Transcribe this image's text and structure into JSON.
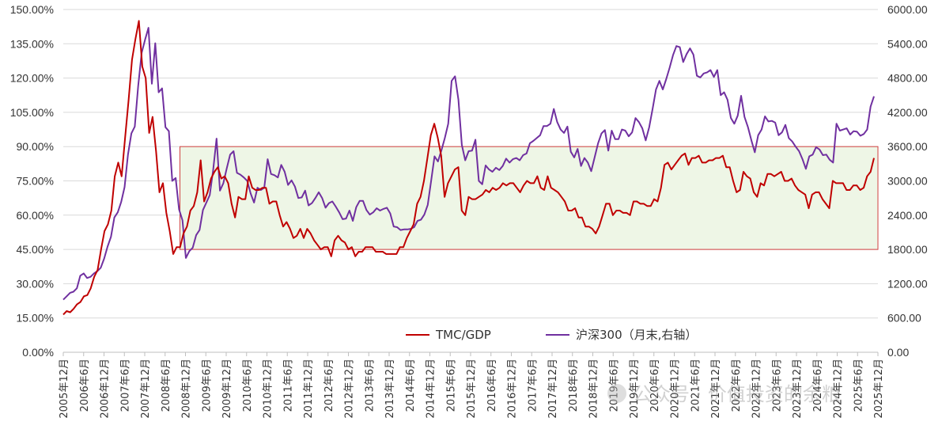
{
  "chart_data": {
    "type": "line",
    "title": "",
    "x_labels": [
      "2005年12月",
      "2006年6月",
      "2006年12月",
      "2007年6月",
      "2007年12月",
      "2008年6月",
      "2008年12月",
      "2009年6月",
      "2009年12月",
      "2010年6月",
      "2010年12月",
      "2011年6月",
      "2011年12月",
      "2012年6月",
      "2012年12月",
      "2013年6月",
      "2013年12月",
      "2014年6月",
      "2014年12月",
      "2015年6月",
      "2015年12月",
      "2016年6月",
      "2016年12月",
      "2017年6月",
      "2017年12月",
      "2018年6月",
      "2018年12月",
      "2019年6月",
      "2019年12月",
      "2020年6月",
      "2020年12月",
      "2021年6月",
      "2021年12月",
      "2022年6月",
      "2022年12月",
      "2023年6月",
      "2023年12月",
      "2024年6月",
      "2024年12月",
      "2025年6月",
      "2025年12月"
    ],
    "left_axis": {
      "min": 0,
      "max": 150,
      "ticks": [
        "0.00%",
        "15.00%",
        "30.00%",
        "45.00%",
        "60.00%",
        "75.00%",
        "90.00%",
        "105.00%",
        "120.00%",
        "135.00%",
        "150.00%"
      ]
    },
    "right_axis": {
      "min": 0,
      "max": 6000,
      "ticks": [
        "0.00",
        "600.00",
        "1200.00",
        "1800.00",
        "2400.00",
        "3000.00",
        "3600.00",
        "4200.00",
        "4800.00",
        "5400.00",
        "6000.00"
      ]
    },
    "series": [
      {
        "name": "TMC/GDP",
        "axis": "left",
        "color": "#c00000",
        "values": [
          16.5,
          18,
          17.5,
          19,
          21,
          22,
          24.5,
          25,
          28,
          33,
          36,
          45,
          53,
          56,
          62,
          77,
          83,
          77,
          94,
          110,
          128,
          137,
          145,
          125,
          120,
          96,
          103,
          88,
          70,
          74,
          61,
          53,
          43,
          46,
          46,
          52,
          55,
          62,
          64,
          70,
          84,
          66,
          70,
          76,
          79,
          81,
          76,
          77,
          74,
          65,
          59,
          68,
          67,
          67,
          77,
          72,
          71,
          71,
          72,
          72,
          65,
          66,
          66,
          60,
          55,
          57,
          54,
          50,
          51,
          54,
          50,
          54,
          52,
          49,
          47,
          45,
          46,
          46,
          42,
          49,
          51,
          49,
          48,
          45,
          46,
          42,
          44,
          44,
          46,
          46,
          46,
          44,
          44,
          44,
          43,
          43,
          43,
          43,
          46,
          46,
          50,
          53,
          56,
          65,
          68,
          75,
          85,
          95,
          100,
          94,
          86,
          68,
          74,
          77,
          80,
          81,
          62,
          60,
          68,
          67,
          67,
          68,
          69,
          71,
          70,
          72,
          71,
          72,
          74,
          73,
          74,
          74,
          72,
          70,
          73,
          75,
          74,
          74,
          77,
          72,
          71,
          77,
          72,
          71,
          70,
          68,
          66,
          62,
          62,
          63,
          59,
          59,
          55,
          55,
          54,
          52,
          55,
          60,
          65,
          65,
          60,
          62,
          62,
          61,
          61,
          60,
          66,
          66,
          65,
          65,
          64,
          64,
          67,
          66,
          72,
          82,
          83,
          80,
          82,
          84,
          86,
          87,
          82,
          85,
          85,
          86,
          83,
          83,
          84,
          84,
          85,
          85,
          86,
          81,
          81,
          75,
          70,
          71,
          79,
          77,
          76,
          70,
          68,
          74,
          73,
          78,
          78,
          77,
          78,
          79,
          75,
          75,
          76,
          73,
          71,
          70,
          69,
          63,
          69,
          70,
          70,
          67,
          65,
          63,
          75,
          74,
          74,
          74,
          71,
          71,
          73,
          73,
          71,
          72,
          77,
          79,
          85
        ]
      },
      {
        "name": "沪深300（月末,右轴）",
        "axis": "right",
        "color": "#7030a0",
        "values": [
          920,
          980,
          1040,
          1060,
          1120,
          1340,
          1380,
          1300,
          1320,
          1380,
          1420,
          1480,
          1640,
          1850,
          2020,
          2360,
          2450,
          2630,
          2890,
          3460,
          3830,
          3950,
          4660,
          5240,
          5470,
          5680,
          4700,
          5410,
          4550,
          4620,
          3940,
          3870,
          3000,
          3050,
          2500,
          2310,
          1650,
          1770,
          1830,
          2050,
          2140,
          2490,
          2620,
          2750,
          3190,
          3740,
          2830,
          2960,
          3220,
          3460,
          3520,
          3140,
          3110,
          3060,
          3000,
          2780,
          2620,
          2880,
          2840,
          2880,
          3380,
          3120,
          3100,
          3060,
          3280,
          3160,
          2930,
          3010,
          2900,
          2700,
          2710,
          2830,
          2570,
          2610,
          2700,
          2800,
          2700,
          2530,
          2610,
          2640,
          2550,
          2450,
          2330,
          2340,
          2480,
          2300,
          2540,
          2650,
          2650,
          2490,
          2410,
          2450,
          2520,
          2480,
          2510,
          2530,
          2430,
          2200,
          2190,
          2140,
          2150,
          2150,
          2160,
          2190,
          2300,
          2320,
          2410,
          2580,
          3000,
          3430,
          3340,
          3530,
          3750,
          4000,
          4750,
          4830,
          4420,
          3630,
          3360,
          3520,
          3530,
          3720,
          3000,
          2940,
          3270,
          3200,
          3160,
          3230,
          3190,
          3260,
          3390,
          3320,
          3380,
          3400,
          3360,
          3450,
          3480,
          3660,
          3700,
          3750,
          3800,
          3960,
          3960,
          4000,
          4260,
          4030,
          3900,
          3840,
          3950,
          3510,
          3410,
          3560,
          3260,
          3400,
          3320,
          3170,
          3410,
          3660,
          3830,
          3890,
          3530,
          3880,
          3730,
          3730,
          3900,
          3880,
          3780,
          3850,
          4100,
          4030,
          3920,
          3710,
          3940,
          4260,
          4600,
          4750,
          4600,
          4780,
          4980,
          5200,
          5360,
          5340,
          5080,
          5220,
          5320,
          5210,
          4840,
          4810,
          4880,
          4900,
          4940,
          4820,
          4940,
          4500,
          4550,
          4420,
          4100,
          4000,
          4140,
          4490,
          4120,
          3940,
          3710,
          3500,
          3800,
          3900,
          4130,
          4040,
          4050,
          4020,
          3800,
          3850,
          3980,
          3750,
          3690,
          3600,
          3520,
          3380,
          3210,
          3430,
          3460,
          3590,
          3550,
          3450,
          3460,
          3370,
          3320,
          4000,
          3880,
          3900,
          3920,
          3810,
          3870,
          3860,
          3790,
          3820,
          3900,
          4300,
          4480
        ]
      }
    ],
    "band": {
      "ymin": 45,
      "ymax": 90,
      "x_start": "2008年12月",
      "x_end": "2025年12月"
    },
    "legend": {
      "position": "bottom-center",
      "items": [
        "TMC/GDP",
        "沪深300（月末,右轴）"
      ]
    }
  },
  "watermark": {
    "text": "公众号 · 价值投资的余粮"
  }
}
